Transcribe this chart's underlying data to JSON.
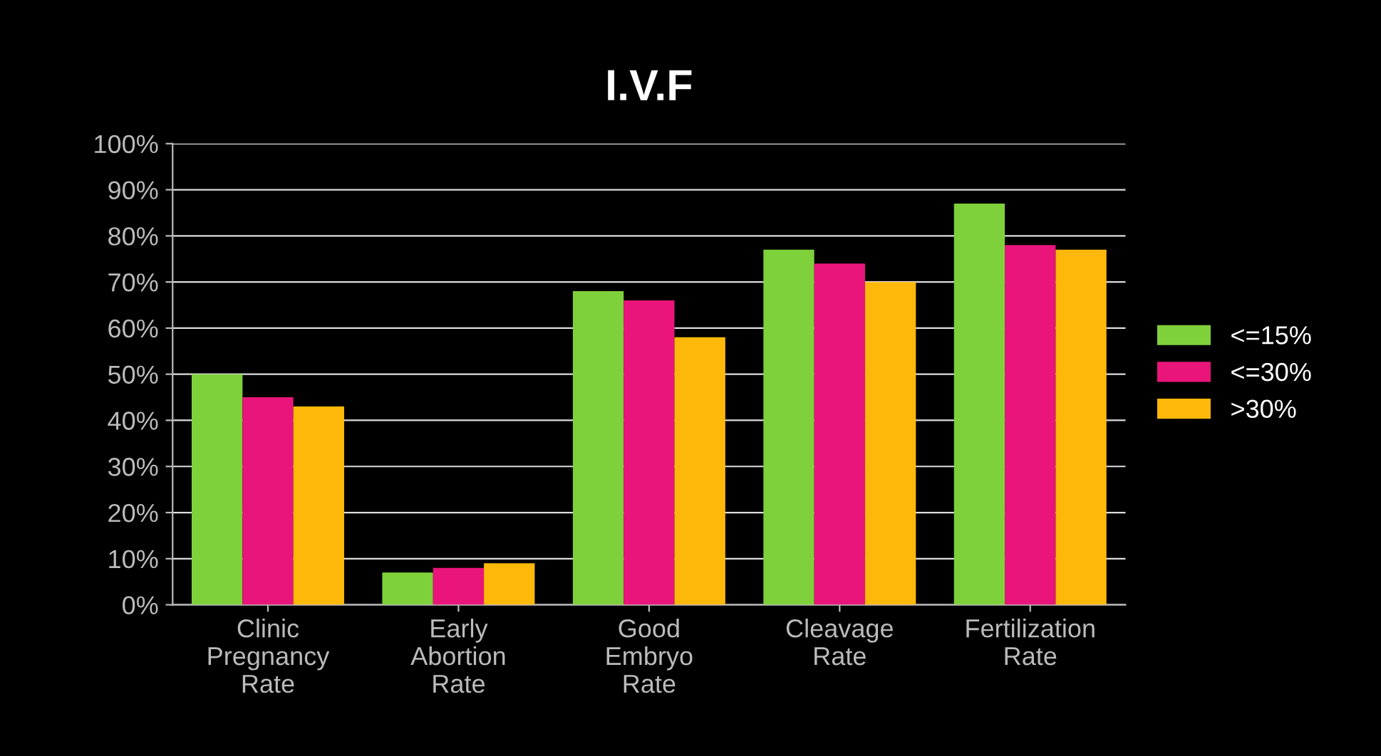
{
  "chart_data": {
    "type": "bar",
    "title": "I.V.F",
    "categories": [
      "Clinic\nPregnancy\nRate",
      "Early\nAbortion\nRate",
      "Good\nEmbryo\nRate",
      "Cleavage\nRate",
      "Fertilization\nRate"
    ],
    "series": [
      {
        "name": "<=15%",
        "color": "#7fd13b",
        "values": [
          50,
          7,
          68,
          77,
          87
        ]
      },
      {
        "name": "<=30%",
        "color": "#ea157a",
        "values": [
          45,
          8,
          66,
          74,
          78
        ]
      },
      {
        "name": ">30%",
        "color": "#feb80a",
        "values": [
          43,
          9,
          58,
          70,
          77
        ]
      }
    ],
    "ylim": [
      0,
      100
    ],
    "yticks": [
      {
        "value": 0,
        "label": "0%"
      },
      {
        "value": 10,
        "label": "10%"
      },
      {
        "value": 20,
        "label": "20%"
      },
      {
        "value": 30,
        "label": "30%"
      },
      {
        "value": 40,
        "label": "40%"
      },
      {
        "value": 50,
        "label": "50%"
      },
      {
        "value": 60,
        "label": "60%"
      },
      {
        "value": 70,
        "label": "70%"
      },
      {
        "value": 80,
        "label": "80%"
      },
      {
        "value": 90,
        "label": "90%"
      },
      {
        "value": 100,
        "label": "100%"
      }
    ],
    "grid": "y",
    "legend": "right"
  }
}
